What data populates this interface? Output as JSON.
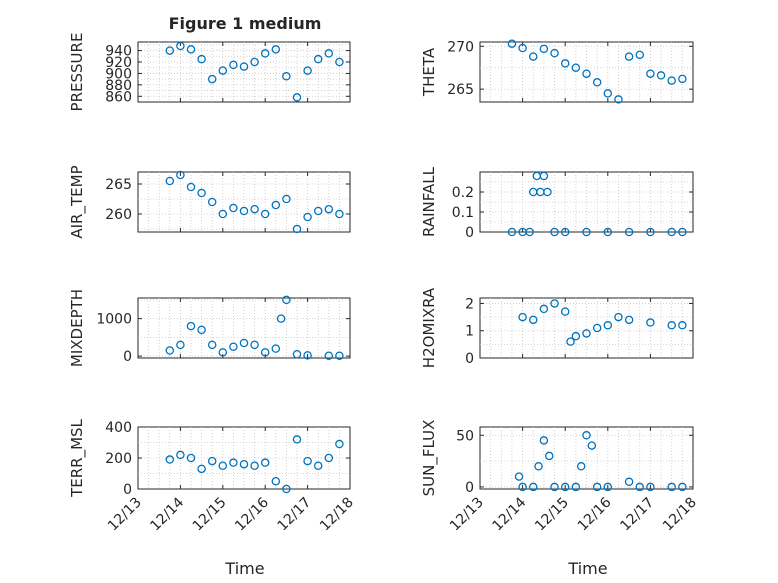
{
  "figure": {
    "title": "Figure 1 medium",
    "xlabel": "Time",
    "marker_color": "#0072bd"
  },
  "chart_data": [
    {
      "type": "scatter",
      "title": "Figure 1 medium",
      "ylabel": "PRESSURE",
      "xlabel": "",
      "xlim": [
        "12/13",
        "12/18"
      ],
      "ylim": [
        850,
        955
      ],
      "yticks": [
        860,
        880,
        900,
        920,
        940
      ],
      "grid": true,
      "x": [
        "12/13 18:00",
        "12/14 00:00",
        "12/14 06:00",
        "12/14 12:00",
        "12/14 18:00",
        "12/15 00:00",
        "12/15 06:00",
        "12/15 12:00",
        "12/15 18:00",
        "12/16 00:00",
        "12/16 06:00",
        "12/16 12:00",
        "12/16 18:00",
        "12/17 00:00",
        "12/17 06:00",
        "12/17 12:00",
        "12/17 18:00"
      ],
      "y": [
        940,
        948,
        942,
        925,
        890,
        905,
        915,
        912,
        920,
        935,
        942,
        895,
        858,
        905,
        925,
        935,
        920
      ]
    },
    {
      "type": "scatter",
      "ylabel": "THETA",
      "xlabel": "",
      "xlim": [
        "12/13",
        "12/18"
      ],
      "ylim": [
        263.5,
        270.5
      ],
      "yticks": [
        265,
        270
      ],
      "grid": true,
      "x": [
        "12/13 18:00",
        "12/14 00:00",
        "12/14 06:00",
        "12/14 12:00",
        "12/14 18:00",
        "12/15 00:00",
        "12/15 06:00",
        "12/15 12:00",
        "12/15 18:00",
        "12/16 00:00",
        "12/16 06:00",
        "12/16 12:00",
        "12/16 18:00",
        "12/17 00:00",
        "12/17 06:00",
        "12/17 12:00",
        "12/17 18:00"
      ],
      "y": [
        270.3,
        269.8,
        268.8,
        269.7,
        269.2,
        268.0,
        267.5,
        266.8,
        265.8,
        264.5,
        263.8,
        268.8,
        269.0,
        266.8,
        266.6,
        266.0,
        266.2
      ]
    },
    {
      "type": "scatter",
      "ylabel": "AIR_TEMP",
      "xlabel": "",
      "xlim": [
        "12/13",
        "12/18"
      ],
      "ylim": [
        257,
        267
      ],
      "yticks": [
        260,
        265
      ],
      "grid": true,
      "x": [
        "12/13 18:00",
        "12/14 00:00",
        "12/14 06:00",
        "12/14 12:00",
        "12/14 18:00",
        "12/15 00:00",
        "12/15 06:00",
        "12/15 12:00",
        "12/15 18:00",
        "12/16 00:00",
        "12/16 06:00",
        "12/16 12:00",
        "12/16 18:00",
        "12/17 00:00",
        "12/17 06:00",
        "12/17 12:00",
        "12/17 18:00"
      ],
      "y": [
        265.5,
        266.5,
        264.5,
        263.5,
        262.0,
        260.0,
        261.0,
        260.5,
        260.8,
        260.0,
        261.5,
        262.5,
        257.5,
        259.5,
        260.5,
        260.8,
        260.0
      ]
    },
    {
      "type": "scatter",
      "ylabel": "RAINFALL",
      "xlabel": "",
      "xlim": [
        "12/13",
        "12/18"
      ],
      "ylim": [
        0,
        0.3
      ],
      "yticks": [
        0,
        0.1,
        0.2
      ],
      "grid": true,
      "x": [
        "12/13 18:00",
        "12/14 00:00",
        "12/14 04:00",
        "12/14 06:00",
        "12/14 08:00",
        "12/14 10:00",
        "12/14 12:00",
        "12/14 14:00",
        "12/14 18:00",
        "12/15 00:00",
        "12/15 12:00",
        "12/16 00:00",
        "12/16 12:00",
        "12/17 00:00",
        "12/17 12:00",
        "12/17 18:00"
      ],
      "y": [
        0,
        0,
        0,
        0.2,
        0.28,
        0.2,
        0.28,
        0.2,
        0,
        0,
        0,
        0,
        0,
        0,
        0,
        0
      ]
    },
    {
      "type": "scatter",
      "ylabel": "MIXDEPTH",
      "xlabel": "",
      "xlim": [
        "12/13",
        "12/18"
      ],
      "ylim": [
        -50,
        1550
      ],
      "yticks": [
        0,
        1000
      ],
      "grid": true,
      "x": [
        "12/13 18:00",
        "12/14 00:00",
        "12/14 06:00",
        "12/14 12:00",
        "12/14 18:00",
        "12/15 00:00",
        "12/15 06:00",
        "12/15 12:00",
        "12/15 18:00",
        "12/16 00:00",
        "12/16 06:00",
        "12/16 09:00",
        "12/16 12:00",
        "12/16 18:00",
        "12/17 00:00",
        "12/17 12:00",
        "12/17 18:00"
      ],
      "y": [
        150,
        300,
        800,
        700,
        300,
        100,
        250,
        350,
        300,
        100,
        200,
        1000,
        1500,
        50,
        20,
        10,
        10
      ]
    },
    {
      "type": "scatter",
      "ylabel": "H2OMIXRA",
      "xlabel": "",
      "xlim": [
        "12/13",
        "12/18"
      ],
      "ylim": [
        0,
        2.2
      ],
      "yticks": [
        0,
        1,
        2
      ],
      "grid": true,
      "x": [
        "12/14 00:00",
        "12/14 06:00",
        "12/14 12:00",
        "12/14 18:00",
        "12/15 00:00",
        "12/15 03:00",
        "12/15 06:00",
        "12/15 12:00",
        "12/15 18:00",
        "12/16 00:00",
        "12/16 06:00",
        "12/16 12:00",
        "12/17 00:00",
        "12/17 12:00",
        "12/17 18:00"
      ],
      "y": [
        1.5,
        1.4,
        1.8,
        2.0,
        1.7,
        0.6,
        0.8,
        0.9,
        1.1,
        1.2,
        1.5,
        1.4,
        1.3,
        1.2,
        1.2
      ]
    },
    {
      "type": "scatter",
      "ylabel": "TERR_MSL",
      "xlabel": "",
      "xlim": [
        "12/13",
        "12/18"
      ],
      "ylim": [
        0,
        400
      ],
      "yticks": [
        0,
        200,
        400
      ],
      "grid": true,
      "x": [
        "12/13 18:00",
        "12/14 00:00",
        "12/14 06:00",
        "12/14 12:00",
        "12/14 18:00",
        "12/15 00:00",
        "12/15 06:00",
        "12/15 12:00",
        "12/15 18:00",
        "12/16 00:00",
        "12/16 06:00",
        "12/16 12:00",
        "12/16 18:00",
        "12/17 00:00",
        "12/17 06:00",
        "12/17 12:00",
        "12/17 18:00"
      ],
      "y": [
        190,
        220,
        200,
        130,
        180,
        150,
        170,
        160,
        150,
        170,
        50,
        0,
        320,
        180,
        150,
        200,
        290
      ]
    },
    {
      "type": "scatter",
      "ylabel": "SUN_FLUX",
      "xlabel": "",
      "xlim": [
        "12/13",
        "12/18"
      ],
      "ylim": [
        -2,
        58
      ],
      "yticks": [
        0,
        50
      ],
      "grid": true,
      "x": [
        "12/13 22:00",
        "12/14 00:00",
        "12/14 06:00",
        "12/14 09:00",
        "12/14 12:00",
        "12/14 15:00",
        "12/14 18:00",
        "12/15 00:00",
        "12/15 06:00",
        "12/15 09:00",
        "12/15 12:00",
        "12/15 15:00",
        "12/15 18:00",
        "12/16 00:00",
        "12/16 12:00",
        "12/16 18:00",
        "12/17 00:00",
        "12/17 12:00",
        "12/17 18:00"
      ],
      "y": [
        10,
        0,
        0,
        20,
        45,
        30,
        0,
        0,
        0,
        20,
        50,
        40,
        0,
        0,
        5,
        0,
        0,
        0,
        0
      ]
    }
  ],
  "xaxis": {
    "tick_labels": [
      "12/13",
      "12/14",
      "12/15",
      "12/16",
      "12/17",
      "12/18"
    ]
  }
}
